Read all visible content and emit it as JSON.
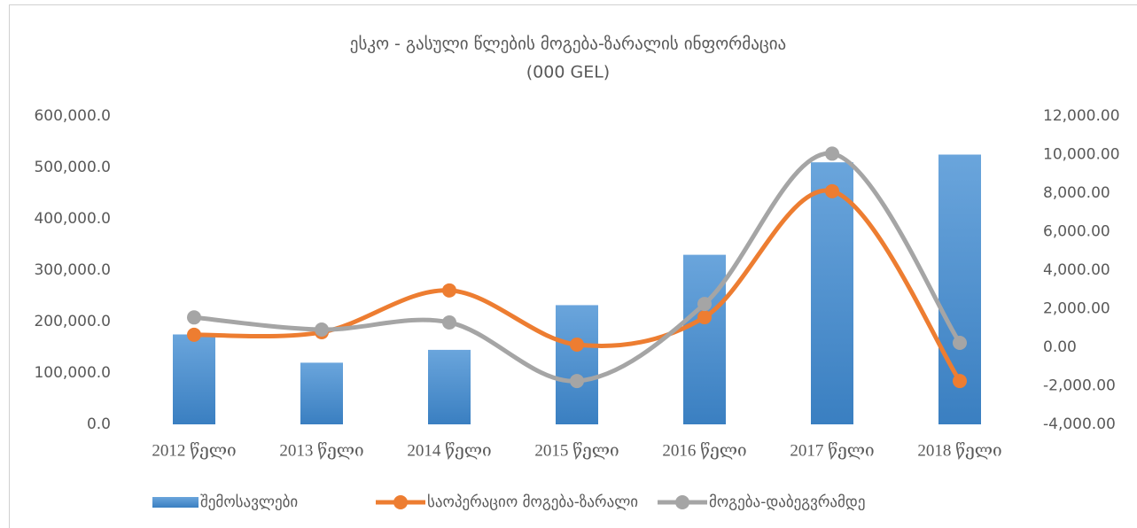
{
  "chart_data": {
    "type": "combo",
    "title": "ესკო - გასული წლების მოგება-ზარალის ინფორმაცია",
    "subtitle": "(000 GEL)",
    "categories": [
      "2012 წელი",
      "2013 წელი",
      "2014 წელი",
      "2015 წელი",
      "2016 წელი",
      "2017 წელი",
      "2018 წელი"
    ],
    "series": [
      {
        "name": "შემოსავლები",
        "kind": "bar",
        "color": "#5b9bd5",
        "values": [
          175000,
          120000,
          145000,
          232000,
          330000,
          510000,
          525000
        ]
      },
      {
        "name": "საოპერაციო მოგება-ზარალი",
        "kind": "line",
        "axis": "y2",
        "color": "#ed7d31",
        "values": [
          650,
          780,
          2950,
          140,
          1560,
          8100,
          -1750
        ]
      },
      {
        "name": "მოგება-დაბეგვრამდე",
        "kind": "line",
        "axis": "y2",
        "color": "#a5a5a5",
        "values": [
          1550,
          920,
          1290,
          -1750,
          2250,
          10050,
          230
        ]
      }
    ],
    "ylim": [
      0,
      600000
    ],
    "yticks": [
      {
        "value": 0,
        "label": "0.0"
      },
      {
        "value": 100000,
        "label": "100,000.0"
      },
      {
        "value": 200000,
        "label": "200,000.0"
      },
      {
        "value": 300000,
        "label": "300,000.0"
      },
      {
        "value": 400000,
        "label": "400,000.0"
      },
      {
        "value": 500000,
        "label": "500,000.0"
      },
      {
        "value": 600000,
        "label": "600,000.0"
      }
    ],
    "y2lim": [
      -4000,
      12000
    ],
    "y2ticks": [
      {
        "value": -4000,
        "label": "-4,000.00"
      },
      {
        "value": -2000,
        "label": "-2,000.00"
      },
      {
        "value": 0,
        "label": "0.00"
      },
      {
        "value": 2000,
        "label": "2,000.00"
      },
      {
        "value": 4000,
        "label": "4,000.00"
      },
      {
        "value": 6000,
        "label": "6,000.00"
      },
      {
        "value": 8000,
        "label": "8,000.00"
      },
      {
        "value": 10000,
        "label": "10,000.00"
      },
      {
        "value": 12000,
        "label": "12,000.00"
      }
    ],
    "grid": false,
    "legend": "bottom",
    "smooth": true
  }
}
